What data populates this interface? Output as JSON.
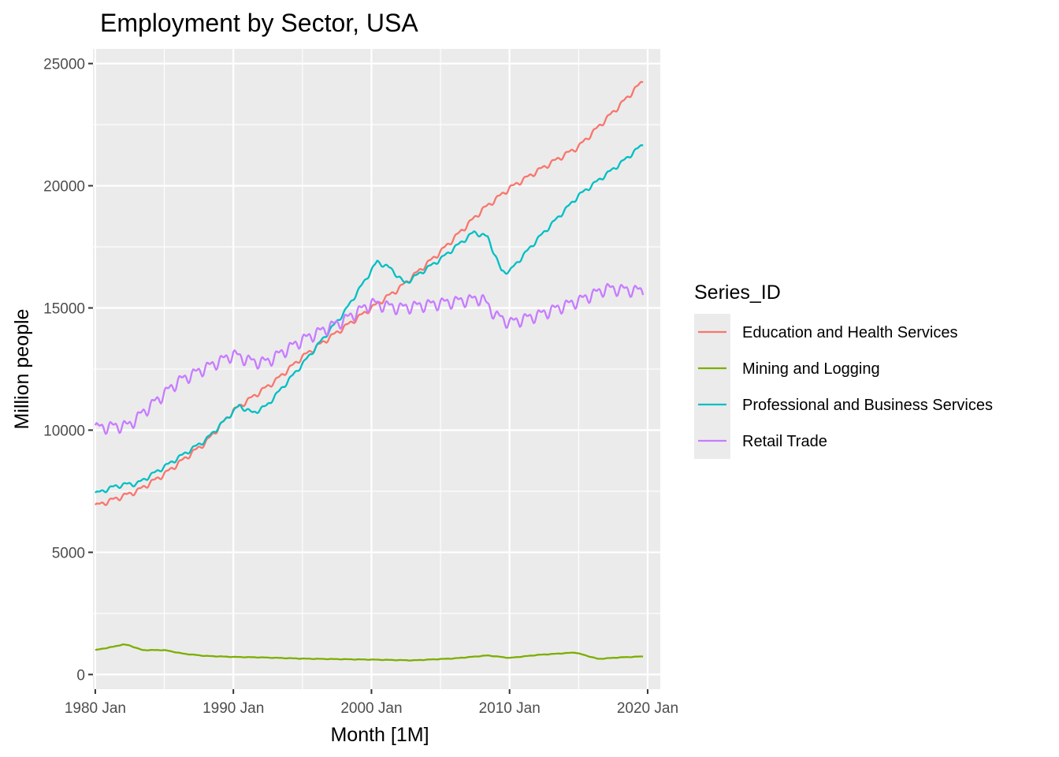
{
  "chart_data": {
    "type": "line",
    "title": "Employment by Sector, USA",
    "xlabel": "Month [1M]",
    "ylabel": "Million people",
    "x_ticks": [
      "1980 Jan",
      "1990 Jan",
      "2000 Jan",
      "2010 Jan",
      "2020 Jan"
    ],
    "y_ticks": [
      "0",
      "5000",
      "10000",
      "15000",
      "20000",
      "25000"
    ],
    "xlim": [
      "1979-11",
      "2020-12"
    ],
    "ylim": [
      -600,
      25600
    ],
    "grid": true,
    "legend": {
      "title": "Series_ID",
      "position": "right"
    },
    "series": [
      {
        "name": "Education and Health Services",
        "color": "#F8766D",
        "seasonal_amplitude": 120,
        "points": [
          [
            "1980-01",
            6900
          ],
          [
            "1983-01",
            7500
          ],
          [
            "1985-01",
            8200
          ],
          [
            "1988-01",
            9500
          ],
          [
            "1990-01",
            10800
          ],
          [
            "1993-01",
            12000
          ],
          [
            "1995-01",
            13000
          ],
          [
            "1998-01",
            14200
          ],
          [
            "2000-01",
            15000
          ],
          [
            "2002-01",
            15800
          ],
          [
            "2005-01",
            17300
          ],
          [
            "2008-01",
            19000
          ],
          [
            "2010-01",
            19900
          ],
          [
            "2012-01",
            20600
          ],
          [
            "2015-01",
            21600
          ],
          [
            "2018-01",
            23300
          ],
          [
            "2019-09",
            24300
          ]
        ]
      },
      {
        "name": "Mining and Logging",
        "color": "#7CAE00",
        "seasonal_amplitude": 10,
        "points": [
          [
            "1980-01",
            1000
          ],
          [
            "1981-06",
            1150
          ],
          [
            "1982-01",
            1230
          ],
          [
            "1982-06",
            1200
          ],
          [
            "1983-06",
            1000
          ],
          [
            "1985-01",
            1000
          ],
          [
            "1986-06",
            850
          ],
          [
            "1988-01",
            760
          ],
          [
            "1990-01",
            720
          ],
          [
            "1992-01",
            700
          ],
          [
            "1995-01",
            650
          ],
          [
            "2000-01",
            610
          ],
          [
            "2003-01",
            580
          ],
          [
            "2006-01",
            660
          ],
          [
            "2008-06",
            780
          ],
          [
            "2010-01",
            680
          ],
          [
            "2012-01",
            800
          ],
          [
            "2014-10",
            900
          ],
          [
            "2016-06",
            640
          ],
          [
            "2018-01",
            700
          ],
          [
            "2019-09",
            740
          ]
        ]
      },
      {
        "name": "Professional and Business Services",
        "color": "#00BFC4",
        "seasonal_amplitude": 100,
        "points": [
          [
            "1980-01",
            7400
          ],
          [
            "1981-06",
            7700
          ],
          [
            "1982-06",
            7800
          ],
          [
            "1983-01",
            7800
          ],
          [
            "1985-01",
            8500
          ],
          [
            "1988-01",
            9600
          ],
          [
            "1990-06",
            11000
          ],
          [
            "1991-06",
            10700
          ],
          [
            "1992-06",
            11000
          ],
          [
            "1995-01",
            12700
          ],
          [
            "1998-01",
            14800
          ],
          [
            "2000-06",
            16900
          ],
          [
            "2001-06",
            16600
          ],
          [
            "2002-06",
            16000
          ],
          [
            "2005-01",
            17000
          ],
          [
            "2007-06",
            18100
          ],
          [
            "2008-06",
            17900
          ],
          [
            "2009-06",
            16500
          ],
          [
            "2010-01",
            16500
          ],
          [
            "2012-01",
            17800
          ],
          [
            "2015-01",
            19600
          ],
          [
            "2018-01",
            20900
          ],
          [
            "2019-09",
            21700
          ]
        ]
      },
      {
        "name": "Retail Trade",
        "color": "#C77CFF",
        "seasonal_amplitude": 280,
        "points": [
          [
            "1980-01",
            10100
          ],
          [
            "1982-06",
            10200
          ],
          [
            "1984-01",
            11000
          ],
          [
            "1986-01",
            12000
          ],
          [
            "1990-01",
            13100
          ],
          [
            "1991-06",
            12800
          ],
          [
            "1992-06",
            12800
          ],
          [
            "1995-01",
            13700
          ],
          [
            "1998-01",
            14500
          ],
          [
            "2000-01",
            15200
          ],
          [
            "2002-01",
            15000
          ],
          [
            "2005-01",
            15200
          ],
          [
            "2008-01",
            15400
          ],
          [
            "2009-01",
            14700
          ],
          [
            "2010-01",
            14400
          ],
          [
            "2012-01",
            14700
          ],
          [
            "2015-01",
            15300
          ],
          [
            "2017-01",
            15800
          ],
          [
            "2019-09",
            15700
          ]
        ]
      }
    ]
  }
}
